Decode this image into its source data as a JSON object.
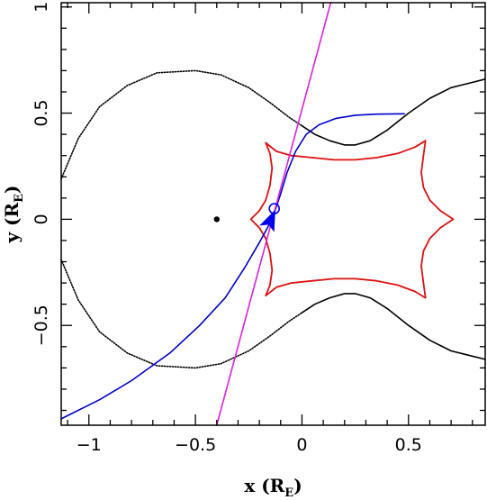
{
  "chart_data": {
    "type": "line",
    "title": "",
    "xlabel": "x (R",
    "xlabel_sub": "E",
    "xlabel_close": ")",
    "ylabel": "y (R",
    "ylabel_sub": "E",
    "ylabel_close": ")",
    "xlim": [
      -1.13,
      0.86
    ],
    "ylim": [
      -0.97,
      1.02
    ],
    "x_ticks": [
      -1,
      -0.5,
      0,
      0.5
    ],
    "x_tick_labels": [
      "−1",
      "−0.5",
      "0",
      "0.5"
    ],
    "y_ticks": [
      -0.5,
      0,
      0.5,
      1
    ],
    "y_tick_labels": [
      "−0.5",
      "0",
      "0.5",
      "1"
    ],
    "grid": false,
    "colors": {
      "critical_curve": "#000000",
      "caustic": "#dd1111",
      "source_trajectory": "#0000cc",
      "straight_line": "#dd22dd",
      "source": "#0000ee"
    },
    "series": [
      {
        "key": "critical_outer",
        "style": "dotted",
        "points": [
          [
            -1.13,
            -0.19
          ],
          [
            -1.05,
            -0.38
          ],
          [
            -0.95,
            -0.53
          ],
          [
            -0.82,
            -0.63
          ],
          [
            -0.68,
            -0.69
          ],
          [
            -0.5,
            -0.7
          ],
          [
            -0.38,
            -0.68
          ],
          [
            -0.25,
            -0.62
          ],
          [
            -0.15,
            -0.55
          ],
          [
            -0.06,
            -0.48
          ],
          [
            0.0,
            -0.44
          ]
        ]
      },
      {
        "key": "critical_outer",
        "style": "dotted",
        "points": [
          [
            -1.13,
            0.19
          ],
          [
            -1.05,
            0.38
          ],
          [
            -0.95,
            0.53
          ],
          [
            -0.82,
            0.63
          ],
          [
            -0.68,
            0.69
          ],
          [
            -0.5,
            0.7
          ],
          [
            -0.38,
            0.68
          ],
          [
            -0.25,
            0.62
          ],
          [
            -0.15,
            0.55
          ],
          [
            -0.06,
            0.48
          ],
          [
            0.0,
            0.44
          ]
        ]
      },
      {
        "key": "critical_outer",
        "style": "solid",
        "points": [
          [
            0.0,
            0.44
          ],
          [
            0.06,
            0.4
          ],
          [
            0.13,
            0.37
          ],
          [
            0.2,
            0.35
          ],
          [
            0.25,
            0.35
          ],
          [
            0.32,
            0.37
          ],
          [
            0.4,
            0.42
          ],
          [
            0.5,
            0.5
          ],
          [
            0.6,
            0.57
          ],
          [
            0.7,
            0.62
          ],
          [
            0.78,
            0.64
          ],
          [
            0.86,
            0.66
          ]
        ]
      },
      {
        "key": "critical_outer",
        "style": "solid",
        "points": [
          [
            0.0,
            -0.44
          ],
          [
            0.06,
            -0.4
          ],
          [
            0.13,
            -0.37
          ],
          [
            0.2,
            -0.35
          ],
          [
            0.25,
            -0.35
          ],
          [
            0.32,
            -0.37
          ],
          [
            0.4,
            -0.42
          ],
          [
            0.5,
            -0.5
          ],
          [
            0.6,
            -0.57
          ],
          [
            0.7,
            -0.62
          ],
          [
            0.78,
            -0.64
          ],
          [
            0.86,
            -0.66
          ]
        ]
      },
      {
        "key": "caustic",
        "style": "solid",
        "points": [
          [
            -0.24,
            0.0
          ],
          [
            -0.2,
            0.04
          ],
          [
            -0.17,
            0.09
          ],
          [
            -0.15,
            0.16
          ],
          [
            -0.14,
            0.24
          ],
          [
            -0.15,
            0.31
          ],
          [
            -0.17,
            0.36
          ],
          [
            -0.12,
            0.32
          ],
          [
            -0.05,
            0.3
          ],
          [
            0.05,
            0.29
          ],
          [
            0.15,
            0.28
          ],
          [
            0.25,
            0.28
          ],
          [
            0.35,
            0.29
          ],
          [
            0.45,
            0.31
          ],
          [
            0.53,
            0.34
          ],
          [
            0.58,
            0.37
          ],
          [
            0.57,
            0.3
          ],
          [
            0.56,
            0.22
          ],
          [
            0.57,
            0.15
          ],
          [
            0.6,
            0.09
          ],
          [
            0.65,
            0.04
          ],
          [
            0.71,
            0.0
          ],
          [
            0.65,
            -0.04
          ],
          [
            0.6,
            -0.09
          ],
          [
            0.57,
            -0.15
          ],
          [
            0.56,
            -0.22
          ],
          [
            0.57,
            -0.3
          ],
          [
            0.58,
            -0.37
          ],
          [
            0.53,
            -0.34
          ],
          [
            0.45,
            -0.31
          ],
          [
            0.35,
            -0.29
          ],
          [
            0.25,
            -0.28
          ],
          [
            0.15,
            -0.28
          ],
          [
            0.05,
            -0.29
          ],
          [
            -0.05,
            -0.3
          ],
          [
            -0.12,
            -0.32
          ],
          [
            -0.17,
            -0.36
          ],
          [
            -0.15,
            -0.31
          ],
          [
            -0.14,
            -0.24
          ],
          [
            -0.15,
            -0.16
          ],
          [
            -0.17,
            -0.09
          ],
          [
            -0.2,
            -0.04
          ],
          [
            -0.24,
            0.0
          ]
        ]
      },
      {
        "key": "source_trajectory",
        "style": "solid",
        "points": [
          [
            -1.13,
            -0.94
          ],
          [
            -0.95,
            -0.85
          ],
          [
            -0.8,
            -0.76
          ],
          [
            -0.62,
            -0.63
          ],
          [
            -0.48,
            -0.5
          ],
          [
            -0.36,
            -0.37
          ],
          [
            -0.27,
            -0.23
          ],
          [
            -0.2,
            -0.11
          ],
          [
            -0.14,
            0.0
          ],
          [
            -0.1,
            0.12
          ],
          [
            -0.07,
            0.22
          ],
          [
            -0.03,
            0.32
          ],
          [
            0.02,
            0.4
          ],
          [
            0.08,
            0.445
          ],
          [
            0.16,
            0.475
          ],
          [
            0.25,
            0.49
          ],
          [
            0.35,
            0.495
          ],
          [
            0.48,
            0.497
          ]
        ]
      },
      {
        "key": "straight_line",
        "style": "solid",
        "points": [
          [
            -0.4,
            -0.97
          ],
          [
            0.135,
            1.02
          ]
        ]
      }
    ],
    "lens_point": [
      -0.4,
      0.0
    ],
    "source_circle": [
      -0.13,
      0.05
    ],
    "arrow": {
      "from": [
        -0.165,
        -0.045
      ],
      "to": [
        -0.125,
        0.045
      ]
    }
  }
}
